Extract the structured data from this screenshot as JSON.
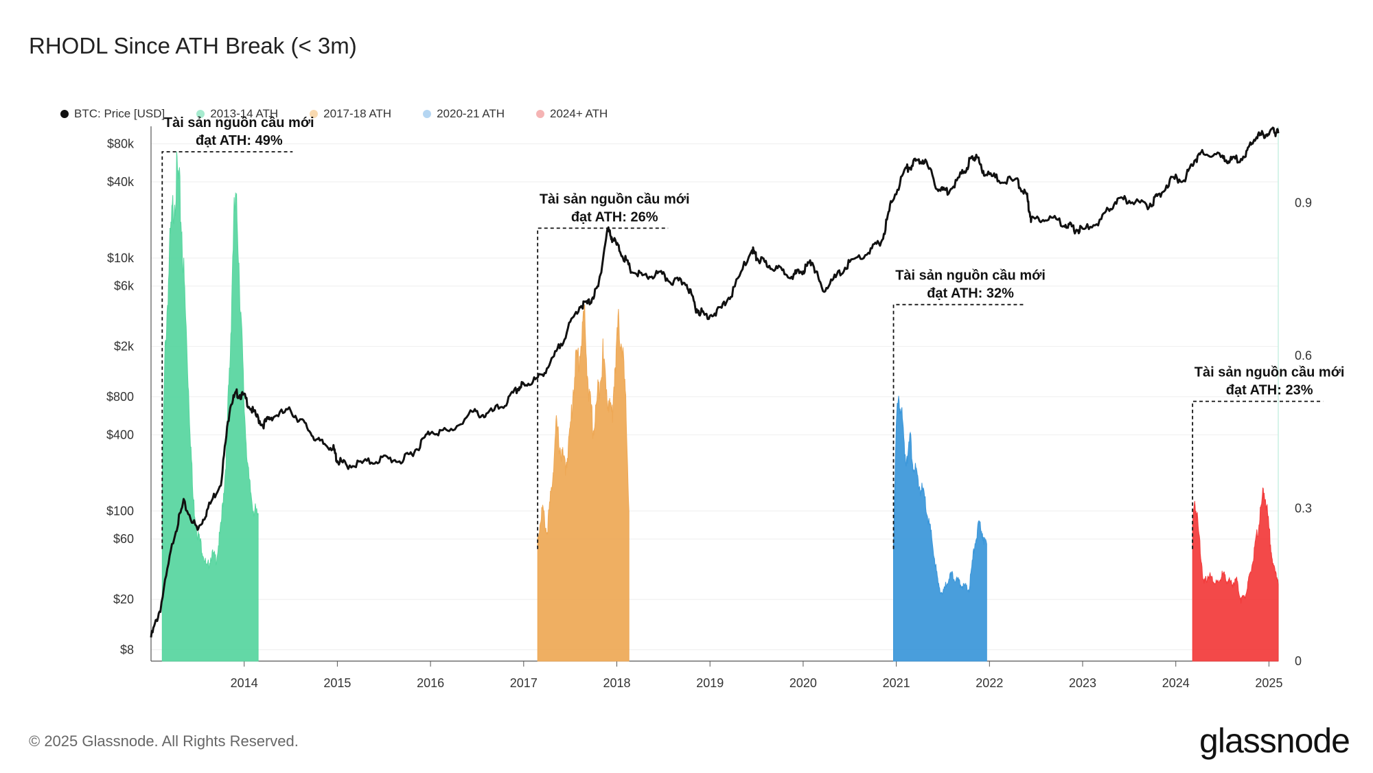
{
  "title": "RHODL Since ATH Break (< 3m)",
  "legend": [
    {
      "label": "BTC: Price [USD]",
      "color": "#111111"
    },
    {
      "label": "2013-14 ATH",
      "color": "#a6ebcf"
    },
    {
      "label": "2017-18 ATH",
      "color": "#f8d9b0"
    },
    {
      "label": "2020-21 ATH",
      "color": "#b5d6f2"
    },
    {
      "label": "2024+ ATH",
      "color": "#f5b4b4"
    }
  ],
  "footer": "© 2025 Glassnode. All Rights Reserved.",
  "brand": "glassnode",
  "chart_data": {
    "type": "area",
    "x_range": [
      2013.0,
      2025.1
    ],
    "x_ticks": [
      "2014",
      "2015",
      "2016",
      "2017",
      "2018",
      "2019",
      "2020",
      "2021",
      "2022",
      "2023",
      "2024",
      "2025"
    ],
    "y_left_scale": "log",
    "y_left_range": [
      6.5,
      110000
    ],
    "y_left_ticks": [
      {
        "label": "$8",
        "value": 8
      },
      {
        "label": "$20",
        "value": 20
      },
      {
        "label": "$60",
        "value": 60
      },
      {
        "label": "$100",
        "value": 100
      },
      {
        "label": "$400",
        "value": 400
      },
      {
        "label": "$800",
        "value": 800
      },
      {
        "label": "$2k",
        "value": 2000
      },
      {
        "label": "$6k",
        "value": 6000
      },
      {
        "label": "$10k",
        "value": 10000
      },
      {
        "label": "$40k",
        "value": 40000
      },
      {
        "label": "$80k",
        "value": 80000
      }
    ],
    "y_right_range": [
      0,
      1.05
    ],
    "y_right_ticks": [
      {
        "label": "0",
        "value": 0
      },
      {
        "label": "0.3",
        "value": 0.3
      },
      {
        "label": "0.6",
        "value": 0.6
      },
      {
        "label": "0.9",
        "value": 0.9
      }
    ],
    "price_series": {
      "name": "BTC: Price [USD]",
      "x": [
        2013.0,
        2013.1,
        2013.25,
        2013.35,
        2013.5,
        2013.6,
        2013.75,
        2013.85,
        2013.92,
        2014.0,
        2014.1,
        2014.2,
        2014.3,
        2014.5,
        2014.65,
        2014.8,
        2014.95,
        2015.0,
        2015.1,
        2015.3,
        2015.5,
        2015.7,
        2015.85,
        2016.0,
        2016.2,
        2016.45,
        2016.6,
        2016.8,
        2016.95,
        2017.0,
        2017.15,
        2017.3,
        2017.45,
        2017.6,
        2017.7,
        2017.8,
        2017.9,
        2017.96,
        2018.05,
        2018.15,
        2018.3,
        2018.45,
        2018.6,
        2018.75,
        2018.85,
        2018.95,
        2019.1,
        2019.25,
        2019.45,
        2019.5,
        2019.6,
        2019.75,
        2019.9,
        2020.0,
        2020.1,
        2020.2,
        2020.35,
        2020.5,
        2020.7,
        2020.85,
        2020.95,
        2021.1,
        2021.2,
        2021.3,
        2021.45,
        2021.55,
        2021.7,
        2021.8,
        2021.85,
        2021.95,
        2022.1,
        2022.3,
        2022.4,
        2022.45,
        2022.6,
        2022.8,
        2022.9,
        2023.0,
        2023.2,
        2023.35,
        2023.5,
        2023.7,
        2023.8,
        2023.95,
        2024.1,
        2024.2,
        2024.3,
        2024.5,
        2024.6,
        2024.75,
        2024.85,
        2024.95,
        2025.05,
        2025.1
      ],
      "y": [
        10,
        17,
        65,
        115,
        70,
        100,
        170,
        700,
        850,
        800,
        600,
        480,
        560,
        620,
        480,
        350,
        320,
        250,
        230,
        240,
        260,
        250,
        310,
        430,
        420,
        600,
        570,
        700,
        950,
        1000,
        1100,
        1500,
        2500,
        4200,
        4400,
        5800,
        17000,
        14000,
        11000,
        8000,
        7000,
        7500,
        6500,
        6400,
        4000,
        3500,
        3800,
        5500,
        12000,
        10000,
        9000,
        8000,
        7300,
        8000,
        9500,
        5500,
        7000,
        9200,
        11000,
        14000,
        28000,
        50000,
        57000,
        60000,
        35000,
        34000,
        45000,
        60000,
        64000,
        47000,
        42000,
        40000,
        31000,
        20000,
        21000,
        19000,
        17000,
        16500,
        20000,
        28000,
        29000,
        26000,
        30000,
        42000,
        43000,
        60000,
        68000,
        62000,
        58000,
        65000,
        90000,
        95000,
        100000,
        97000
      ]
    },
    "series": [
      {
        "name": "2013-14 ATH",
        "color": "#56d59e",
        "start": 2013.12,
        "end": 2014.15,
        "label": "Tài sản nguồn cầu mới",
        "label_value": "đạt ATH: 49%",
        "x": [
          2013.12,
          2013.15,
          2013.2,
          2013.25,
          2013.28,
          2013.3,
          2013.33,
          2013.36,
          2013.4,
          2013.45,
          2013.5,
          2013.55,
          2013.6,
          2013.65,
          2013.7,
          2013.75,
          2013.8,
          2013.85,
          2013.88,
          2013.9,
          2013.93,
          2013.96,
          2014.0,
          2014.05,
          2014.1,
          2014.15
        ],
        "y": [
          0.35,
          0.6,
          0.8,
          0.92,
          0.95,
          0.93,
          0.85,
          0.72,
          0.55,
          0.32,
          0.25,
          0.22,
          0.18,
          0.21,
          0.2,
          0.26,
          0.38,
          0.6,
          0.82,
          0.89,
          0.86,
          0.7,
          0.5,
          0.35,
          0.3,
          0.28
        ]
      },
      {
        "name": "2017-18 ATH",
        "color": "#eea855",
        "start": 2017.15,
        "end": 2018.13,
        "label": "Tài sản nguồn cầu mới",
        "label_value": "đạt ATH: 26%",
        "x": [
          2017.15,
          2017.2,
          2017.25,
          2017.3,
          2017.35,
          2017.4,
          2017.45,
          2017.5,
          2017.55,
          2017.6,
          2017.65,
          2017.7,
          2017.75,
          2017.8,
          2017.85,
          2017.9,
          2017.95,
          2017.98,
          2018.02,
          2018.06,
          2018.1,
          2018.13
        ],
        "y": [
          0.24,
          0.3,
          0.25,
          0.34,
          0.46,
          0.41,
          0.38,
          0.45,
          0.58,
          0.6,
          0.68,
          0.52,
          0.45,
          0.53,
          0.6,
          0.52,
          0.48,
          0.58,
          0.66,
          0.62,
          0.48,
          0.3
        ]
      },
      {
        "name": "2020-21 ATH",
        "color": "#3a96d9",
        "start": 2020.97,
        "end": 2021.97,
        "label": "Tài sản nguồn cầu mới",
        "label_value": "đạt ATH: 32%",
        "x": [
          2020.97,
          2021.0,
          2021.02,
          2021.05,
          2021.1,
          2021.15,
          2021.2,
          2021.3,
          2021.38,
          2021.45,
          2021.5,
          2021.55,
          2021.6,
          2021.7,
          2021.78,
          2021.85,
          2021.9,
          2021.93,
          2021.97
        ],
        "y": [
          0.24,
          0.45,
          0.53,
          0.49,
          0.4,
          0.43,
          0.37,
          0.32,
          0.24,
          0.15,
          0.13,
          0.16,
          0.17,
          0.15,
          0.14,
          0.24,
          0.27,
          0.25,
          0.22
        ]
      },
      {
        "name": "2024+ ATH",
        "color": "#f23a3a",
        "start": 2024.18,
        "end": 2025.1,
        "label": "Tài sản nguồn cầu mới",
        "label_value": "đạt ATH: 23%",
        "x": [
          2024.18,
          2024.2,
          2024.23,
          2024.27,
          2024.3,
          2024.35,
          2024.4,
          2024.45,
          2024.5,
          2024.55,
          2024.6,
          2024.65,
          2024.7,
          2024.75,
          2024.8,
          2024.85,
          2024.9,
          2024.95,
          2025.0,
          2025.05,
          2025.1
        ],
        "y": [
          0.26,
          0.32,
          0.28,
          0.21,
          0.15,
          0.17,
          0.16,
          0.15,
          0.17,
          0.16,
          0.15,
          0.16,
          0.12,
          0.13,
          0.17,
          0.22,
          0.28,
          0.34,
          0.26,
          0.18,
          0.16
        ]
      }
    ]
  }
}
